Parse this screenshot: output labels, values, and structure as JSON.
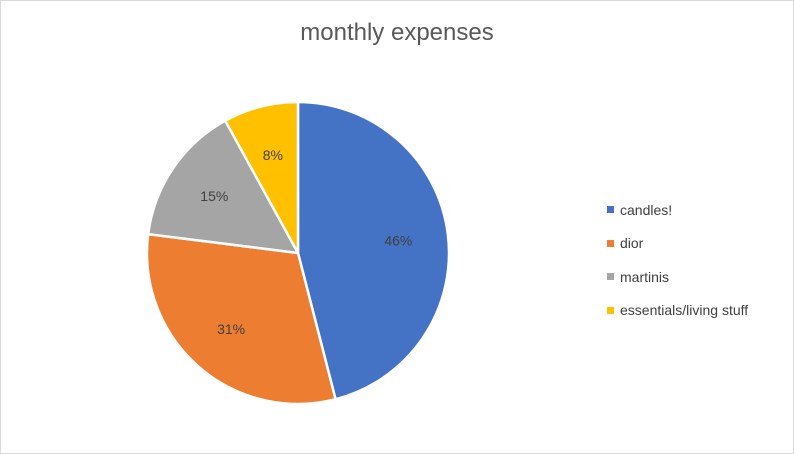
{
  "chart_data": {
    "type": "pie",
    "title": "monthly expenses",
    "categories": [
      "candles!",
      "dior",
      "martinis",
      "essentials/living stuff"
    ],
    "values": [
      46,
      31,
      15,
      8
    ],
    "data_labels": [
      "46%",
      "31%",
      "15%",
      "8%"
    ],
    "colors": [
      "#4472C4",
      "#ED7D31",
      "#A5A5A5",
      "#FFC000"
    ],
    "legend_position": "right"
  }
}
